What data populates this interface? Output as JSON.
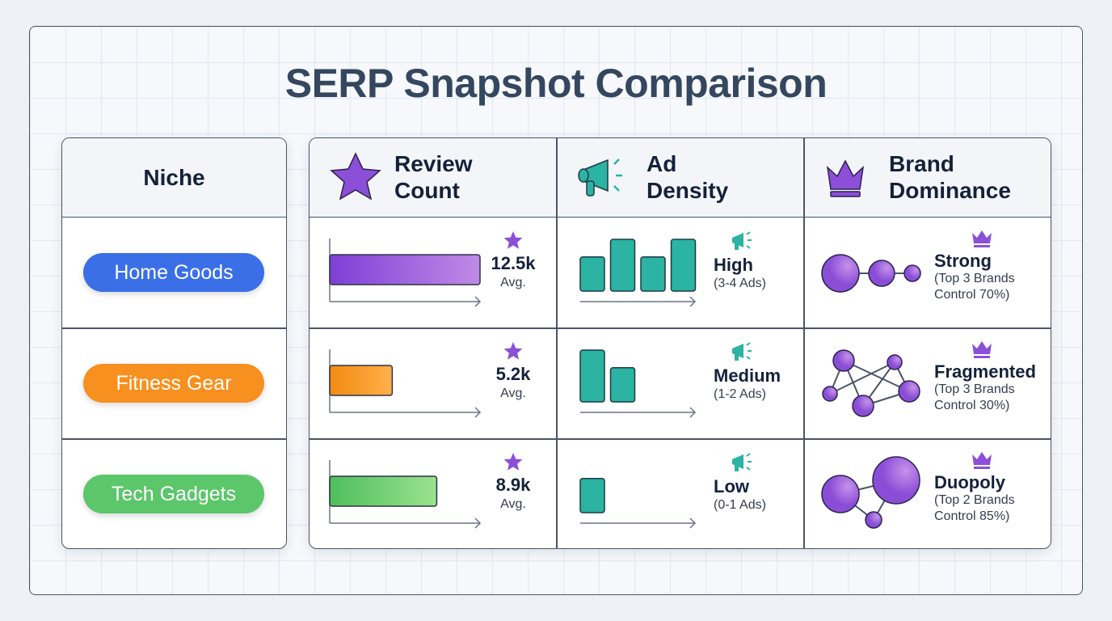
{
  "title": "SERP Snapshot Comparison",
  "headers": {
    "niche": "Niche",
    "review": [
      "Review",
      "Count"
    ],
    "review_badge": "2",
    "ad": [
      "Ad",
      "Density"
    ],
    "brand": [
      "Brand",
      "Dominance"
    ]
  },
  "colors": {
    "purple": "#8b4fd8",
    "teal": "#2bb3a3",
    "blue": "#3b6fe8",
    "orange": "#f7901e",
    "green": "#5cc66a"
  },
  "rows": [
    {
      "niche": "Home Goods",
      "niche_color": "#3b6fe8",
      "review_value": "12.5k",
      "review_num": 12.5,
      "review_sub": "Avg.",
      "review_color": "#8b4fd8",
      "ad_level": "High",
      "ad_range": "(3-4 Ads)",
      "ad_bars": [
        0.66,
        1,
        0.66,
        1
      ],
      "brand_level": "Strong",
      "brand_desc": [
        "(Top 3 Brands",
        "Control 70%)"
      ],
      "brand_pattern": "chain"
    },
    {
      "niche": "Fitness Gear",
      "niche_color": "#f7901e",
      "review_value": "5.2k",
      "review_num": 5.2,
      "review_sub": "Avg.",
      "review_color": "#f7901e",
      "ad_level": "Medium",
      "ad_range": "(1-2 Ads)",
      "ad_bars": [
        1,
        0.66
      ],
      "brand_level": "Fragmented",
      "brand_desc": [
        "(Top 3 Brands",
        "Control 30%)"
      ],
      "brand_pattern": "network"
    },
    {
      "niche": "Tech Gadgets",
      "niche_color": "#5cc66a",
      "review_value": "8.9k",
      "review_num": 8.9,
      "review_sub": "Avg.",
      "review_color": "#5cc66a",
      "ad_level": "Low",
      "ad_range": "(0-1 Ads)",
      "ad_bars": [
        0.66
      ],
      "brand_level": "Duopoly",
      "brand_desc": [
        "(Top 2 Brands",
        "Control 85%)"
      ],
      "brand_pattern": "duopoly"
    }
  ]
}
